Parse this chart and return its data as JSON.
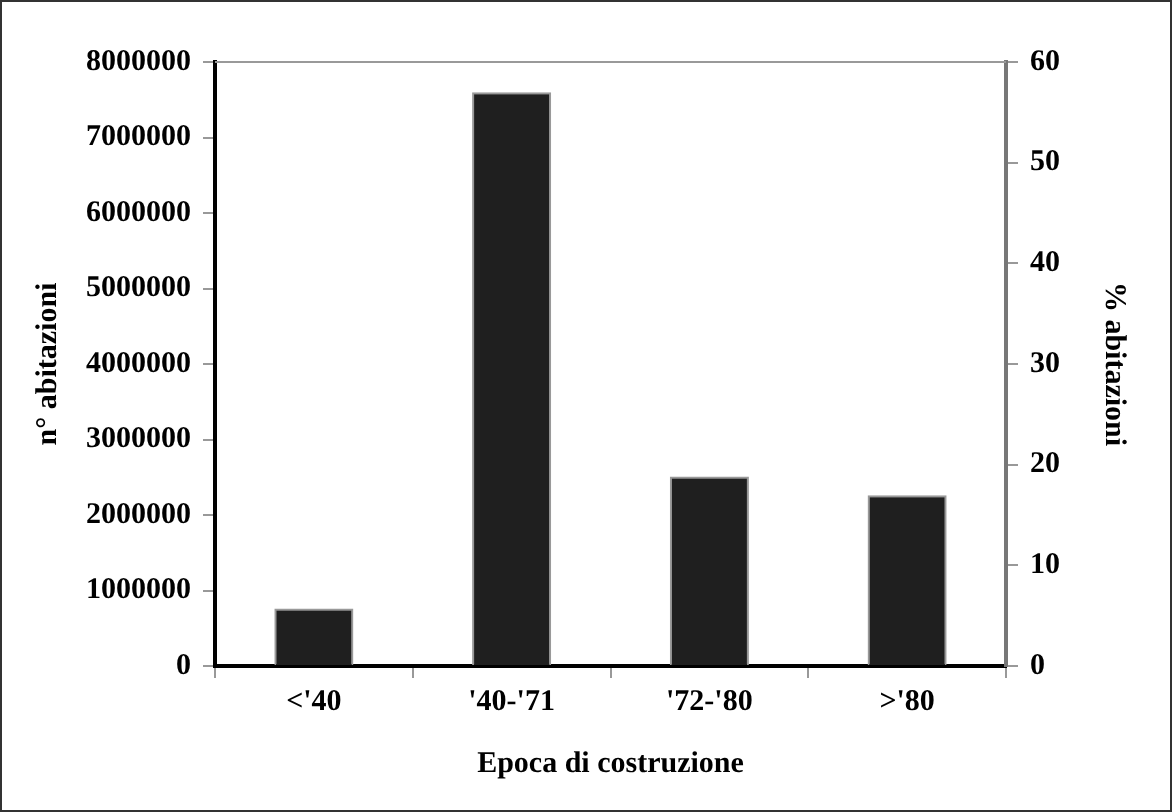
{
  "chart_data": {
    "type": "bar",
    "xlabel": "Epoca di costruzione",
    "ylabel": "n° abitazioni",
    "y2label": "% abitazioni",
    "categories": [
      "<'40",
      "'40-'71",
      "'72-'80",
      ">'80"
    ],
    "series": [
      {
        "color": "#1f1f1f",
        "values": [
          760000,
          7600000,
          2510000,
          2260000
        ]
      }
    ],
    "ylim": [
      0,
      8000000
    ],
    "yticks": [
      0,
      1000000,
      2000000,
      3000000,
      4000000,
      5000000,
      6000000,
      7000000,
      8000000
    ],
    "y2lim": [
      0,
      60
    ],
    "y2ticks": [
      0,
      10,
      20,
      30,
      40,
      50,
      60
    ],
    "grid": false,
    "legend": false
  }
}
